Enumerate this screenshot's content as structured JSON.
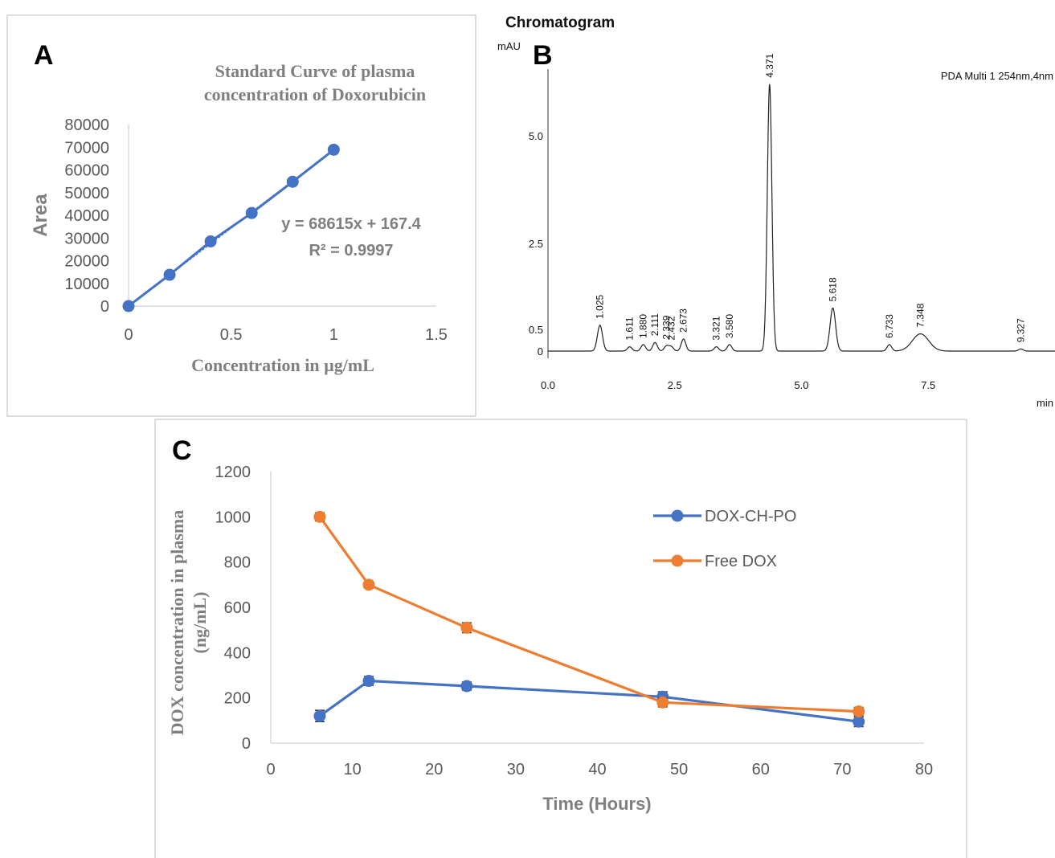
{
  "chart_data": [
    {
      "panel_label": "A",
      "type": "scatter",
      "title_line1": "Standard Curve of plasma",
      "title_line2": "concentration of Doxorubicin",
      "xlabel": "Concentration in µg/mL",
      "ylabel": "Area",
      "xlim": [
        0,
        1.5
      ],
      "ylim": [
        0,
        80000
      ],
      "x_ticks": [
        "0",
        "0.5",
        "1",
        "1.5"
      ],
      "x_tick_values": [
        0,
        0.5,
        1,
        1.5
      ],
      "y_ticks": [
        "0",
        "10000",
        "20000",
        "30000",
        "40000",
        "50000",
        "60000",
        "70000",
        "80000"
      ],
      "y_tick_values": [
        0,
        10000,
        20000,
        30000,
        40000,
        50000,
        60000,
        70000,
        80000
      ],
      "x": [
        0,
        0.2,
        0.4,
        0.6,
        0.8,
        1.0
      ],
      "y": [
        0,
        13800,
        28500,
        41000,
        54800,
        68900
      ],
      "trendline": {
        "slope": 68615,
        "intercept": 167.4
      },
      "equation": "y = 68615x + 167.4",
      "r2": "R² = 0.9997",
      "color": "#4472c4"
    },
    {
      "panel_label": "B",
      "type": "line",
      "title": "Chromatogram",
      "ylabel": "mAU",
      "xlabel": "min",
      "detector": "PDA Multi 1 254nm,4nm",
      "xlim": [
        0,
        10
      ],
      "ylim": [
        0,
        6.2
      ],
      "x_ticks": [
        "0.0",
        "2.5",
        "5.0",
        "7.5"
      ],
      "x_tick_values": [
        0,
        2.5,
        5.0,
        7.5
      ],
      "y_ticks": [
        "0",
        "0.5",
        "2.5",
        "5.0"
      ],
      "y_tick_values": [
        0,
        0.5,
        2.5,
        5.0
      ],
      "peaks": [
        {
          "rt": 1.025,
          "label": "1.025",
          "height": 0.6
        },
        {
          "rt": 1.611,
          "label": "1.611",
          "height": 0.1
        },
        {
          "rt": 1.88,
          "label": "1.880",
          "height": 0.15
        },
        {
          "rt": 2.111,
          "label": "2.111",
          "height": 0.2
        },
        {
          "rt": 2.339,
          "label": "2.339",
          "height": 0.12
        },
        {
          "rt": 2.432,
          "label": "2.432",
          "height": 0.1
        },
        {
          "rt": 2.673,
          "label": "2.673",
          "height": 0.28
        },
        {
          "rt": 3.321,
          "label": "3.321",
          "height": 0.1
        },
        {
          "rt": 3.58,
          "label": "3.580",
          "height": 0.15
        },
        {
          "rt": 4.371,
          "label": "4.371",
          "height": 6.2
        },
        {
          "rt": 5.618,
          "label": "5.618",
          "height": 1.0
        },
        {
          "rt": 6.733,
          "label": "6.733",
          "height": 0.15
        },
        {
          "rt": 7.348,
          "label": "7.348",
          "height": 0.4
        },
        {
          "rt": 9.327,
          "label": "9.327",
          "height": 0.05
        }
      ],
      "color": "#222222"
    },
    {
      "panel_label": "C",
      "type": "line",
      "xlabel": "Time (Hours)",
      "ylabel_line1": "DOX concentration in plasma",
      "ylabel_line2": "(ng/mL)",
      "xlim": [
        0,
        80
      ],
      "ylim": [
        0,
        1200
      ],
      "x_ticks": [
        "0",
        "10",
        "20",
        "30",
        "40",
        "50",
        "60",
        "70",
        "80"
      ],
      "x_tick_values": [
        0,
        10,
        20,
        30,
        40,
        50,
        60,
        70,
        80
      ],
      "y_ticks": [
        "0",
        "200",
        "400",
        "600",
        "800",
        "1000",
        "1200"
      ],
      "y_tick_values": [
        0,
        200,
        400,
        600,
        800,
        1000,
        1200
      ],
      "x": [
        6,
        12,
        24,
        48,
        72
      ],
      "series": [
        {
          "name": "DOX-CH-PO",
          "values": [
            120,
            275,
            252,
            205,
            95
          ],
          "errors": [
            25,
            20,
            18,
            22,
            22
          ],
          "color": "#4472c4"
        },
        {
          "name": "Free DOX",
          "values": [
            1000,
            700,
            510,
            180,
            140
          ],
          "errors": [
            18,
            15,
            22,
            20,
            18
          ],
          "color": "#ed7d31"
        }
      ],
      "legend_position": "right"
    }
  ]
}
